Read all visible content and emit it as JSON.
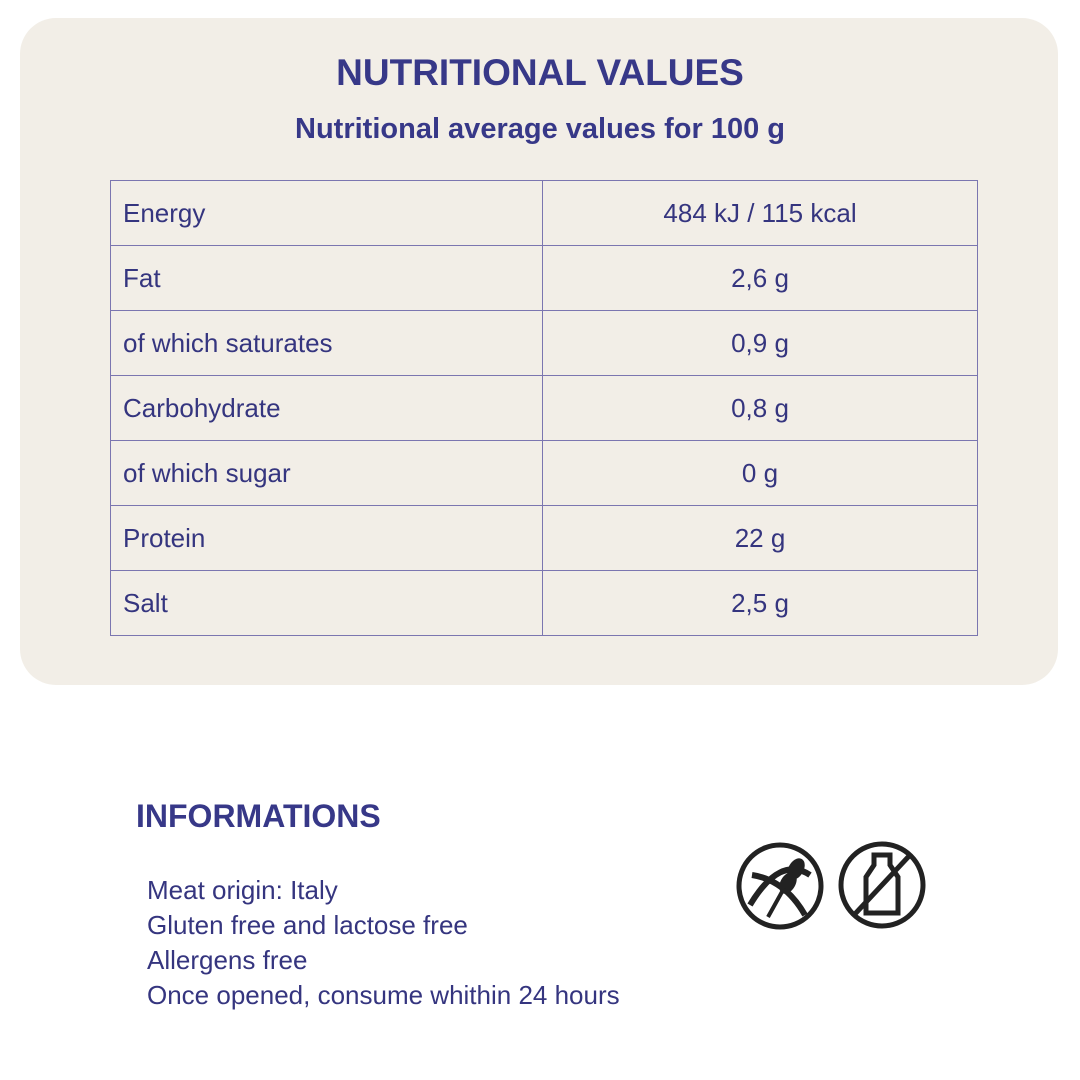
{
  "header": {
    "title": "NUTRITIONAL VALUES",
    "subtitle": "Nutritional average values for 100 g"
  },
  "table": {
    "rows": [
      [
        "Energy",
        "484 kJ / 115 kcal"
      ],
      [
        "Fat",
        "2,6 g"
      ],
      [
        " of which saturates",
        "0,9 g"
      ],
      [
        "Carbohydrate",
        "0,8 g"
      ],
      [
        "of which sugar",
        "0 g"
      ],
      [
        "Protein",
        "22 g"
      ],
      [
        "Salt",
        "2,5 g"
      ]
    ]
  },
  "info": {
    "title": "INFORMATIONS",
    "lines": [
      "Meat origin: Italy",
      "Gluten free and lactose free",
      "Allergens free",
      "Once opened, consume whithin 24 hours"
    ]
  }
}
